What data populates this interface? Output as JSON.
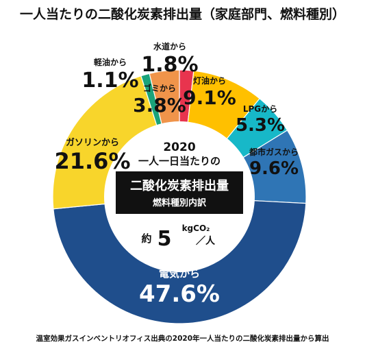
{
  "title": "一人当たりの二酸化炭素排出量（家庭部門、燃料種別）",
  "footnote": "温室効果ガスインベントリオフィス出典の2020年一人当たりの二酸化炭素排出量から算出",
  "center": {
    "year": "2020",
    "line2": "一人一日当たりの",
    "box_title": "二酸化炭素排出量",
    "box_sub": "燃料種別内訳",
    "prefix": "約",
    "value": "5",
    "unit": "kgCO₂",
    "per": "／人"
  },
  "colors": {
    "electricity": "#1f4e8c",
    "city_gas": "#2f75b5",
    "lpg": "#17b8c8",
    "kerosene": "#ffc000",
    "water": "#e8344e",
    "garbage": "#f0944a",
    "light_oil": "#1aa37a",
    "gasoline": "#f8d52b",
    "center_box": "#111111"
  },
  "chart_data": {
    "type": "pie",
    "title": "一人当たりの二酸化炭素排出量（家庭部門、燃料種別）",
    "unit": "%",
    "slices": [
      {
        "key": "water",
        "label": "水道から",
        "value": 1.8,
        "text": "1.8%"
      },
      {
        "key": "kerosene",
        "label": "灯油から",
        "value": 9.1,
        "text": "9.1%"
      },
      {
        "key": "lpg",
        "label": "LPGから",
        "value": 5.3,
        "text": "5.3%"
      },
      {
        "key": "city_gas",
        "label": "都市ガスから",
        "value": 9.6,
        "text": "9.6%"
      },
      {
        "key": "electricity",
        "label": "電気から",
        "value": 47.6,
        "text": "47.6%"
      },
      {
        "key": "gasoline",
        "label": "ガソリンから",
        "value": 21.6,
        "text": "21.6%"
      },
      {
        "key": "light_oil",
        "label": "軽油から",
        "value": 1.1,
        "text": "1.1%"
      },
      {
        "key": "garbage",
        "label": "ゴミから",
        "value": 3.8,
        "text": "3.8%"
      }
    ]
  }
}
